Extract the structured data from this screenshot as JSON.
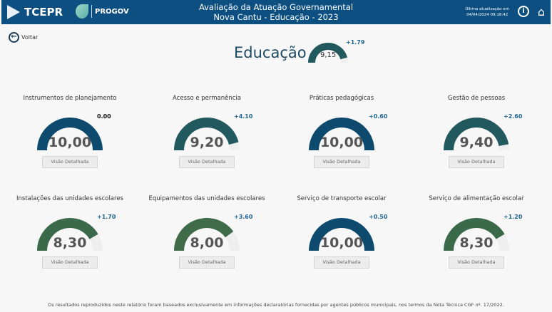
{
  "header": {
    "brand": "TCEPR",
    "partner": "PROGOV",
    "title_line1": "Avaliação da Atuação Governamental",
    "title_line2": "Nova Cantu - Educação - 2023",
    "update_label": "Última atualização em",
    "update_time": "04/04/2024 09:18:42",
    "info_icon": "info-icon",
    "home_icon": "home-icon"
  },
  "nav": {
    "back_label": "Voltar"
  },
  "summary": {
    "title": "Educação",
    "value": "9,15",
    "score": 9.15,
    "delta": "+1.79",
    "color": "#22595f"
  },
  "gauge_max": 10,
  "button_label": "Visão Detalhada",
  "cards": [
    {
      "title": "Instrumentos de planejamento",
      "value": "10,00",
      "score": 10,
      "delta": "0.00",
      "color": "#0d4a6e"
    },
    {
      "title": "Acesso e permanência",
      "value": "9,20",
      "score": 9.2,
      "delta": "+4.10",
      "color": "#22595f"
    },
    {
      "title": "Práticas pedagógicas",
      "value": "10,00",
      "score": 10,
      "delta": "+0.60",
      "color": "#0d4a6e"
    },
    {
      "title": "Gestão de pessoas",
      "value": "9,40",
      "score": 9.4,
      "delta": "+2.60",
      "color": "#22595f"
    },
    {
      "title": "Instalações das unidades escolares",
      "value": "8,30",
      "score": 8.3,
      "delta": "+1.70",
      "color": "#3b6a4b"
    },
    {
      "title": "Equipamentos das unidades escolares",
      "value": "8,00",
      "score": 8.0,
      "delta": "+3.60",
      "color": "#3f6b48"
    },
    {
      "title": "Serviço de transporte escolar",
      "value": "10,00",
      "score": 10,
      "delta": "+0.50",
      "color": "#0d4a6e"
    },
    {
      "title": "Serviço de alimentação escolar",
      "value": "8,30",
      "score": 8.3,
      "delta": "+1.20",
      "color": "#3b6a4b"
    }
  ],
  "footer": "Os resultados reproduzidos neste relatório foram baseados exclusivamente em informações declaratórias fornecidas por agentes públicos municipais, nos termos da Nota Técnica CGF nº. 17/2022."
}
